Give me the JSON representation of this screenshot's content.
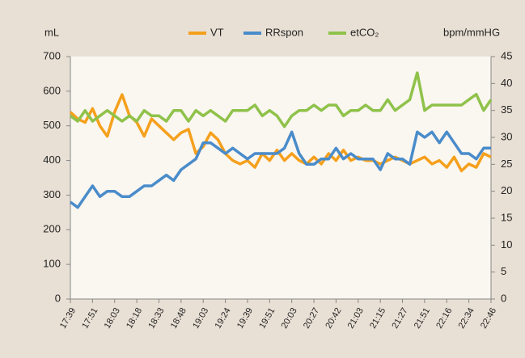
{
  "chart_data": {
    "type": "line",
    "y_label": "mL",
    "y2_label": "bpm/mmHG",
    "categories": [
      "17:39",
      null,
      null,
      "17:51",
      null,
      null,
      "18:03",
      null,
      null,
      "18:18",
      null,
      null,
      "18:33",
      null,
      null,
      "18:48",
      null,
      null,
      "19:03",
      null,
      null,
      "19:24",
      null,
      null,
      "19:39",
      null,
      null,
      "19:51",
      null,
      null,
      "20:03",
      null,
      null,
      "20:27",
      null,
      null,
      "20:42",
      null,
      null,
      "21:03",
      null,
      null,
      "21:15",
      null,
      null,
      "21:27",
      null,
      null,
      "21:51",
      null,
      null,
      "22:16",
      null,
      null,
      "22:34",
      null,
      null,
      "22:46"
    ],
    "series": [
      {
        "name": "VT",
        "color": "#f5a01c",
        "axis": "y",
        "values": [
          540,
          520,
          510,
          550,
          500,
          470,
          540,
          590,
          530,
          510,
          470,
          520,
          500,
          480,
          460,
          480,
          490,
          420,
          440,
          480,
          460,
          420,
          400,
          390,
          400,
          380,
          420,
          400,
          430,
          400,
          420,
          400,
          390,
          410,
          390,
          420,
          400,
          430,
          400,
          410,
          400,
          400,
          390,
          400,
          410,
          400,
          390,
          400,
          410,
          390,
          400,
          380,
          410,
          370,
          390,
          380,
          420,
          410
        ]
      },
      {
        "name": "RRspon",
        "color": "#4a8cca",
        "axis": "y2",
        "values": [
          18,
          17,
          19,
          21,
          19,
          20,
          20,
          19,
          19,
          20,
          21,
          21,
          22,
          23,
          22,
          24,
          25,
          26,
          29,
          29,
          28,
          27,
          28,
          27,
          26,
          27,
          27,
          27,
          27,
          28,
          31,
          27,
          25,
          25,
          26,
          26,
          28,
          26,
          27,
          26,
          26,
          26,
          24,
          27,
          26,
          26,
          25,
          31,
          30,
          31,
          29,
          31,
          29,
          27,
          27,
          26,
          28,
          28
        ]
      },
      {
        "name": "etCO₂",
        "color": "#8fc24a",
        "axis": "y2",
        "values": [
          34,
          33,
          35,
          33,
          34,
          35,
          34,
          33,
          34,
          33,
          35,
          34,
          34,
          33,
          35,
          35,
          33,
          35,
          34,
          35,
          34,
          33,
          35,
          35,
          35,
          36,
          34,
          35,
          34,
          32,
          34,
          35,
          35,
          36,
          35,
          36,
          36,
          34,
          35,
          35,
          36,
          35,
          35,
          37,
          35,
          36,
          37,
          42,
          35,
          36,
          36,
          36,
          36,
          36,
          37,
          38,
          35,
          37
        ]
      }
    ],
    "ylim": [
      0,
      700
    ],
    "yticks": [
      0,
      100,
      200,
      300,
      400,
      500,
      600,
      700
    ],
    "y2lim": [
      0,
      45
    ],
    "y2ticks": [
      0,
      5,
      10,
      15,
      20,
      25,
      30,
      35,
      40,
      45
    ],
    "grid": false
  }
}
